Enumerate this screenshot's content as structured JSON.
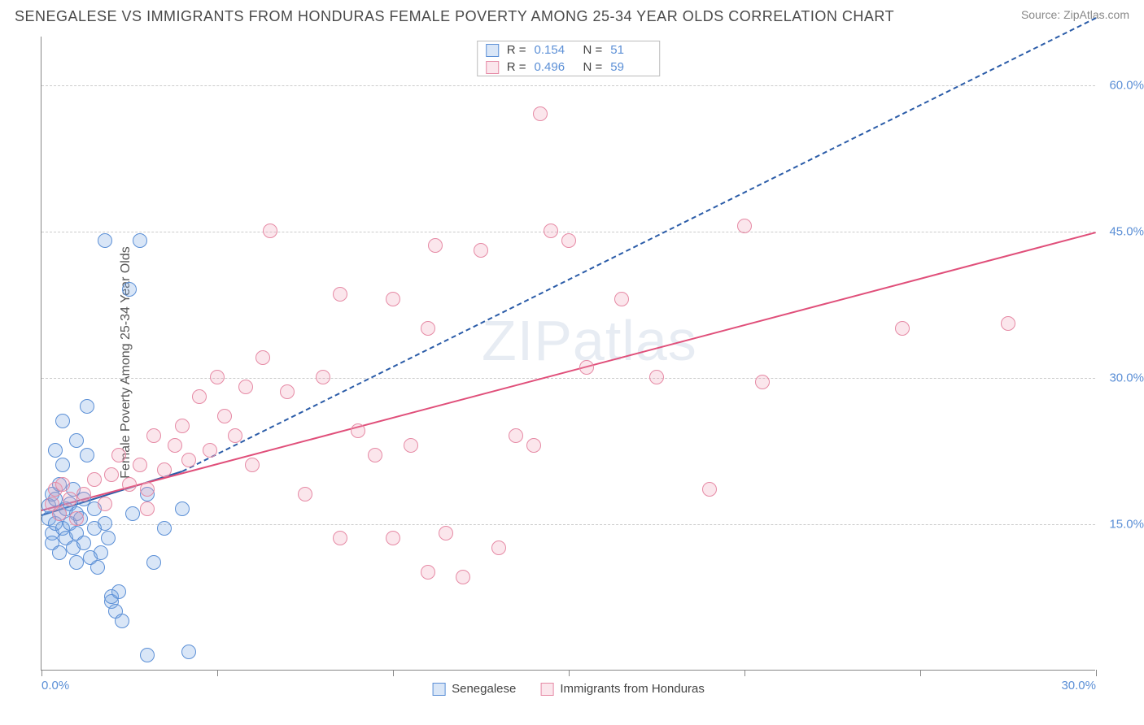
{
  "title": "SENEGALESE VS IMMIGRANTS FROM HONDURAS FEMALE POVERTY AMONG 25-34 YEAR OLDS CORRELATION CHART",
  "source": "Source: ZipAtlas.com",
  "y_axis_label": "Female Poverty Among 25-34 Year Olds",
  "watermark": "ZIPatlas",
  "chart": {
    "type": "scatter-correlation",
    "x_range": [
      0,
      30
    ],
    "y_range": [
      0,
      65
    ],
    "x_ticks": [
      0,
      5,
      10,
      15,
      20,
      25,
      30
    ],
    "x_tick_labels": {
      "0": "0.0%",
      "30": "30.0%"
    },
    "y_gridlines": [
      15,
      30,
      45,
      60
    ],
    "y_tick_labels": {
      "15": "15.0%",
      "30": "30.0%",
      "45": "45.0%",
      "60": "60.0%"
    },
    "gridline_color": "#cccccc",
    "axis_color": "#888888",
    "background_color": "#ffffff",
    "tick_label_color": "#5b8fd6",
    "point_radius": 9,
    "point_stroke_width": 1.5,
    "point_fill_opacity": 0.25
  },
  "series": [
    {
      "name": "Senegalese",
      "color_stroke": "#5b8fd6",
      "color_fill": "rgba(120,165,225,0.28)",
      "R": "0.154",
      "N": "51",
      "trend": {
        "solid_from": [
          0,
          16
        ],
        "solid_to": [
          4,
          20.5
        ],
        "dashed_to": [
          30,
          67
        ],
        "color": "#2b5ca8"
      },
      "points": [
        [
          0.2,
          15.5
        ],
        [
          0.2,
          16.8
        ],
        [
          0.3,
          14.0
        ],
        [
          0.3,
          18.0
        ],
        [
          0.3,
          13.0
        ],
        [
          0.4,
          15.0
        ],
        [
          0.4,
          17.5
        ],
        [
          0.5,
          12.0
        ],
        [
          0.5,
          16.0
        ],
        [
          0.5,
          19.0
        ],
        [
          0.6,
          14.5
        ],
        [
          0.6,
          21.0
        ],
        [
          0.7,
          13.5
        ],
        [
          0.7,
          16.5
        ],
        [
          0.8,
          15.0
        ],
        [
          0.8,
          17.0
        ],
        [
          0.9,
          12.5
        ],
        [
          0.9,
          18.5
        ],
        [
          1.0,
          11.0
        ],
        [
          1.0,
          14.0
        ],
        [
          1.0,
          16.0
        ],
        [
          1.1,
          15.5
        ],
        [
          1.2,
          13.0
        ],
        [
          1.2,
          17.5
        ],
        [
          1.3,
          22.0
        ],
        [
          1.3,
          27.0
        ],
        [
          1.4,
          11.5
        ],
        [
          1.5,
          14.5
        ],
        [
          1.5,
          16.5
        ],
        [
          1.6,
          10.5
        ],
        [
          1.7,
          12.0
        ],
        [
          1.8,
          15.0
        ],
        [
          1.8,
          44.0
        ],
        [
          1.9,
          13.5
        ],
        [
          2.0,
          7.0
        ],
        [
          2.0,
          7.5
        ],
        [
          2.1,
          6.0
        ],
        [
          2.2,
          8.0
        ],
        [
          2.3,
          5.0
        ],
        [
          2.5,
          39.0
        ],
        [
          2.6,
          16.0
        ],
        [
          2.8,
          44.0
        ],
        [
          3.0,
          18.0
        ],
        [
          3.0,
          1.5
        ],
        [
          3.2,
          11.0
        ],
        [
          3.5,
          14.5
        ],
        [
          4.0,
          16.5
        ],
        [
          4.2,
          1.8
        ],
        [
          1.0,
          23.5
        ],
        [
          0.4,
          22.5
        ],
        [
          0.6,
          25.5
        ]
      ]
    },
    {
      "name": "Immigants from Honduras",
      "label": "Immigrants from Honduras",
      "color_stroke": "#e68aa5",
      "color_fill": "rgba(240,155,180,0.25)",
      "R": "0.496",
      "N": "59",
      "trend": {
        "solid_from": [
          0,
          16.5
        ],
        "solid_to": [
          30,
          45
        ],
        "color": "#e04f7a"
      },
      "points": [
        [
          0.3,
          17.0
        ],
        [
          0.4,
          18.5
        ],
        [
          0.5,
          16.0
        ],
        [
          0.6,
          19.0
        ],
        [
          0.8,
          17.5
        ],
        [
          1.0,
          15.5
        ],
        [
          1.2,
          18.0
        ],
        [
          1.5,
          19.5
        ],
        [
          1.8,
          17.0
        ],
        [
          2.0,
          20.0
        ],
        [
          2.2,
          22.0
        ],
        [
          2.5,
          19.0
        ],
        [
          2.8,
          21.0
        ],
        [
          3.0,
          18.5
        ],
        [
          3.2,
          24.0
        ],
        [
          3.5,
          20.5
        ],
        [
          3.8,
          23.0
        ],
        [
          4.0,
          25.0
        ],
        [
          4.2,
          21.5
        ],
        [
          4.5,
          28.0
        ],
        [
          4.8,
          22.5
        ],
        [
          5.0,
          30.0
        ],
        [
          5.2,
          26.0
        ],
        [
          5.5,
          24.0
        ],
        [
          5.8,
          29.0
        ],
        [
          6.0,
          21.0
        ],
        [
          6.3,
          32.0
        ],
        [
          6.5,
          45.0
        ],
        [
          7.0,
          28.5
        ],
        [
          7.5,
          18.0
        ],
        [
          8.0,
          30.0
        ],
        [
          8.5,
          13.5
        ],
        [
          9.0,
          24.5
        ],
        [
          9.5,
          22.0
        ],
        [
          10.0,
          38.0
        ],
        [
          10.0,
          13.5
        ],
        [
          10.5,
          23.0
        ],
        [
          11.0,
          35.0
        ],
        [
          11.2,
          43.5
        ],
        [
          11.5,
          14.0
        ],
        [
          12.0,
          9.5
        ],
        [
          12.5,
          43.0
        ],
        [
          13.0,
          12.5
        ],
        [
          13.5,
          24.0
        ],
        [
          14.0,
          23.0
        ],
        [
          14.2,
          57.0
        ],
        [
          14.5,
          45.0
        ],
        [
          15.0,
          44.0
        ],
        [
          15.5,
          31.0
        ],
        [
          16.5,
          38.0
        ],
        [
          17.5,
          30.0
        ],
        [
          19.0,
          18.5
        ],
        [
          20.0,
          45.5
        ],
        [
          20.5,
          29.5
        ],
        [
          24.5,
          35.0
        ],
        [
          27.5,
          35.5
        ],
        [
          11.0,
          10.0
        ],
        [
          8.5,
          38.5
        ],
        [
          3.0,
          16.5
        ]
      ]
    }
  ],
  "legend_labels": {
    "R": "R  =",
    "N": "N  ="
  }
}
